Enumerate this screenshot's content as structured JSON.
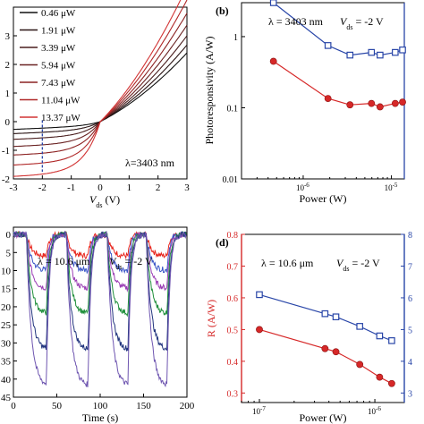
{
  "chart_data": [
    {
      "id": "a",
      "type": "line",
      "xlabel_main": "V",
      "xlabel_sub": "ds",
      "xlabel_unit": "(V)",
      "xlim": [
        -3,
        3
      ],
      "ylim": [
        -2,
        4
      ],
      "xticks": [
        "-3",
        "-2",
        "-1",
        "0",
        "1",
        "2",
        "3"
      ],
      "yticks": [
        "-2",
        "-1",
        "0",
        "1",
        "2",
        "3"
      ],
      "annotation": "λ=3403 nm",
      "marker_x": -2,
      "legend": [
        "0.46 μW",
        "1.91 μW",
        "3.39 μW",
        "5.94 μW",
        "7.43 μW",
        "11.04 μW",
        "13.37 μW"
      ],
      "legend_colors": [
        "#111111",
        "#2a1414",
        "#4a1e1e",
        "#6a2222",
        "#8c2222",
        "#b02828",
        "#d23434"
      ],
      "series": [
        {
          "legend_index": 0,
          "neg_sat": -0.15,
          "slope_pos": 0.52
        },
        {
          "legend_index": 1,
          "neg_sat": -0.3,
          "slope_pos": 0.58
        },
        {
          "legend_index": 2,
          "neg_sat": -0.5,
          "slope_pos": 0.65
        },
        {
          "legend_index": 3,
          "neg_sat": -0.75,
          "slope_pos": 0.73
        },
        {
          "legend_index": 4,
          "neg_sat": -1.05,
          "slope_pos": 0.82
        },
        {
          "legend_index": 5,
          "neg_sat": -1.4,
          "slope_pos": 0.92
        },
        {
          "legend_index": 6,
          "neg_sat": -1.8,
          "slope_pos": 1.02
        }
      ]
    },
    {
      "id": "b",
      "type": "line",
      "panel_label": "(b)",
      "xlabel": "Power (W)",
      "ylabel": "Photoresponsivity (A/W)",
      "annotation_lambda": "λ = 3403 nm",
      "annotation_vds_main": "V",
      "annotation_vds_sub": "ds",
      "annotation_vds_value": "= -2 V",
      "xscale": "log",
      "yscale": "log",
      "xlim": [
        2e-07,
        1.4e-05
      ],
      "ylim": [
        0.01,
        3
      ],
      "xticks": [
        {
          "value": 1e-06,
          "mantissa": "10",
          "exp": "-6"
        },
        {
          "value": 1e-05,
          "mantissa": "10",
          "exp": "-5"
        }
      ],
      "yticks": [
        {
          "value": 0.01,
          "label": "0.01"
        },
        {
          "value": 0.1,
          "label": "0.1"
        },
        {
          "value": 1,
          "label": "1"
        }
      ],
      "series": [
        {
          "marker": "circle",
          "color": "#d62828",
          "x": [
            4.6e-07,
            1.91e-06,
            3.39e-06,
            5.94e-06,
            7.43e-06,
            1.104e-05,
            1.337e-05
          ],
          "y": [
            0.45,
            0.135,
            0.11,
            0.115,
            0.103,
            0.115,
            0.12
          ]
        },
        {
          "marker": "square",
          "color": "#2946a8",
          "x": [
            4.6e-07,
            1.91e-06,
            3.39e-06,
            5.94e-06,
            7.43e-06,
            1.104e-05,
            1.337e-05
          ],
          "y": [
            3.0,
            0.75,
            0.55,
            0.6,
            0.55,
            0.6,
            0.65
          ]
        }
      ],
      "right_axis_color": "#2946a8"
    },
    {
      "id": "c",
      "type": "line",
      "xlabel": "Time (s)",
      "xlim": [
        0,
        200
      ],
      "ylim": [
        -45,
        2
      ],
      "xticks": [
        "0",
        "50",
        "100",
        "150",
        "200"
      ],
      "yticks": [
        {
          "value": 0,
          "label": "0"
        },
        {
          "value": -5,
          "label": "5"
        },
        {
          "value": -10,
          "label": "10"
        },
        {
          "value": -15,
          "label": "15"
        },
        {
          "value": -20,
          "label": "20"
        },
        {
          "value": -25,
          "label": "25"
        },
        {
          "value": -30,
          "label": "30"
        },
        {
          "value": -35,
          "label": "35"
        },
        {
          "value": -40,
          "label": "40"
        },
        {
          "value": -45,
          "label": "45"
        }
      ],
      "annotation_lambda": "λ = 10.6 μm",
      "annotation_vds_main": "V",
      "annotation_vds_sub": "ds",
      "annotation_vds_value": "= -2 V",
      "on_periods": [
        [
          15,
          38
        ],
        [
          61,
          86
        ],
        [
          108,
          132
        ],
        [
          153,
          177
        ]
      ],
      "series": [
        {
          "color": "#e8261e",
          "amplitude": -6
        },
        {
          "color": "#3b56c8",
          "amplitude": -10
        },
        {
          "color": "#9b3fb5",
          "amplitude": -15
        },
        {
          "color": "#1e8f3a",
          "amplitude": -22
        },
        {
          "color": "#22357e",
          "amplitude": -32
        },
        {
          "color": "#6e55b0",
          "amplitude": -42
        }
      ]
    },
    {
      "id": "d",
      "type": "line",
      "panel_label": "(d)",
      "xlabel": "Power (W)",
      "ylabel": "R (A/W)",
      "annotation_lambda": "λ = 10.6 μm",
      "annotation_vds_main": "V",
      "annotation_vds_sub": "ds",
      "annotation_vds_value": "= -2 V",
      "xscale": "log",
      "xlim": [
        7e-08,
        1.8e-06
      ],
      "ylim": [
        0.27,
        0.8
      ],
      "xticks": [
        {
          "value": 1e-07,
          "mantissa": "10",
          "exp": "-7"
        },
        {
          "value": 1e-06,
          "mantissa": "10",
          "exp": "-6"
        }
      ],
      "yticks": [
        {
          "value": 0.3,
          "label": "0.3"
        },
        {
          "value": 0.4,
          "label": "0.4"
        },
        {
          "value": 0.5,
          "label": "0.5"
        },
        {
          "value": 0.6,
          "label": "0.6"
        },
        {
          "value": 0.7,
          "label": "0.7"
        },
        {
          "value": 0.8,
          "label": "0.8"
        }
      ],
      "right_ticks": [
        {
          "value": 0.3,
          "label": "3"
        },
        {
          "value": 0.4,
          "label": "4"
        },
        {
          "value": 0.5,
          "label": "5"
        },
        {
          "value": 0.6,
          "label": "6"
        },
        {
          "value": 0.7,
          "label": "7"
        },
        {
          "value": 0.8,
          "label": "8"
        }
      ],
      "series": [
        {
          "marker": "circle",
          "color": "#d62828",
          "x": [
            1e-07,
            3.7e-07,
            4.6e-07,
            7.4e-07,
            1.1e-06,
            1.4e-06
          ],
          "y": [
            0.5,
            0.44,
            0.43,
            0.39,
            0.35,
            0.33
          ]
        },
        {
          "marker": "square",
          "color": "#2946a8",
          "x": [
            1e-07,
            3.7e-07,
            4.6e-07,
            7.4e-07,
            1.1e-06,
            1.4e-06
          ],
          "y": [
            0.61,
            0.55,
            0.54,
            0.51,
            0.48,
            0.465
          ]
        }
      ],
      "left_axis_color": "#d62828",
      "right_axis_color": "#2946a8"
    }
  ]
}
